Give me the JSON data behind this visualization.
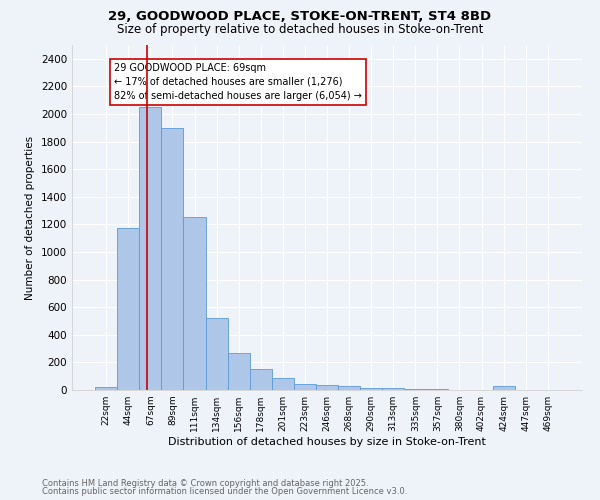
{
  "title_line1": "29, GOODWOOD PLACE, STOKE-ON-TRENT, ST4 8BD",
  "title_line2": "Size of property relative to detached houses in Stoke-on-Trent",
  "xlabel": "Distribution of detached houses by size in Stoke-on-Trent",
  "ylabel": "Number of detached properties",
  "categories": [
    "22sqm",
    "44sqm",
    "67sqm",
    "89sqm",
    "111sqm",
    "134sqm",
    "156sqm",
    "178sqm",
    "201sqm",
    "223sqm",
    "246sqm",
    "268sqm",
    "290sqm",
    "313sqm",
    "335sqm",
    "357sqm",
    "380sqm",
    "402sqm",
    "424sqm",
    "447sqm",
    "469sqm"
  ],
  "values": [
    25,
    1175,
    2050,
    1900,
    1250,
    520,
    270,
    155,
    90,
    45,
    35,
    30,
    15,
    12,
    8,
    5,
    3,
    2,
    30,
    2,
    0
  ],
  "bar_color": "#aec6e8",
  "bar_edge_color": "#5b9bd5",
  "vline_color": "#cc0000",
  "vline_x_index": 1.85,
  "annotation_text": "29 GOODWOOD PLACE: 69sqm\n← 17% of detached houses are smaller (1,276)\n82% of semi-detached houses are larger (6,054) →",
  "annotation_box_color": "#ffffff",
  "annotation_box_edge": "#cc0000",
  "ylim": [
    0,
    2500
  ],
  "yticks": [
    0,
    200,
    400,
    600,
    800,
    1000,
    1200,
    1400,
    1600,
    1800,
    2000,
    2200,
    2400
  ],
  "footer_line1": "Contains HM Land Registry data © Crown copyright and database right 2025.",
  "footer_line2": "Contains public sector information licensed under the Open Government Licence v3.0.",
  "background_color": "#eef2f9",
  "grid_color": "#ffffff"
}
